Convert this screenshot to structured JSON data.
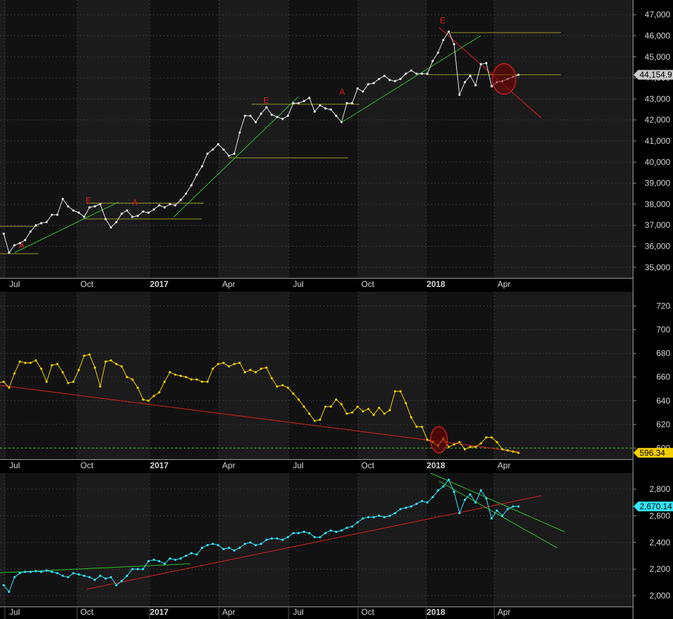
{
  "colors": {
    "background": "#1b1b1b",
    "band_dark": "#121212",
    "axis_text": "#d8d8d8",
    "grid": "#3a3a3a",
    "panel_divider": "#9a9a9a",
    "price_line": "#e6e6e6",
    "yellow_line": "#f5d000",
    "cyan_line": "#33e6ff",
    "trend_red": "#e02020",
    "trend_green": "#2ec02e",
    "level_olive": "#9a9a2a",
    "marker_red": "#e02020"
  },
  "x_axis_labels": [
    {
      "text": "Jul",
      "date": "2016-07-01",
      "bold": false
    },
    {
      "text": "Oct",
      "date": "2016-10-01",
      "bold": false
    },
    {
      "text": "2017",
      "date": "2017-01-01",
      "bold": true
    },
    {
      "text": "Apr",
      "date": "2017-04-01",
      "bold": false
    },
    {
      "text": "Jul",
      "date": "2017-07-01",
      "bold": false
    },
    {
      "text": "Oct",
      "date": "2017-10-01",
      "bold": false
    },
    {
      "text": "2018",
      "date": "2018-01-01",
      "bold": true
    },
    {
      "text": "Apr",
      "date": "2018-04-01",
      "bold": false
    }
  ],
  "chart_data": [
    {
      "type": "line",
      "panel": "top",
      "yticks": [
        "35,000",
        "36,000",
        "37,000",
        "38,000",
        "39,000",
        "40,000",
        "41,000",
        "42,000",
        "43,000",
        "44,000",
        "45,000",
        "46,000",
        "47,000"
      ],
      "ylim": [
        34500,
        47700
      ],
      "last_value_label": "44,154.9",
      "series": [
        {
          "values": [
            36600,
            35700,
            36050,
            36150,
            36300,
            36700,
            37000,
            37100,
            37150,
            37500,
            37500,
            38250,
            37900,
            37700,
            37600,
            37400,
            37850,
            37900,
            38000,
            37300,
            36900,
            37150,
            37550,
            37700,
            37400,
            37450,
            37650,
            37600,
            37750,
            37950,
            37850,
            38000,
            37950,
            38200,
            38500,
            38900,
            39400,
            39800,
            40400,
            40600,
            40850,
            40600,
            40300,
            40400,
            41400,
            42200,
            42200,
            41900,
            42300,
            42600,
            42250,
            42150,
            42050,
            42200,
            42800,
            42800,
            42900,
            43050,
            42400,
            42700,
            42550,
            42500,
            42200,
            41900,
            42800,
            42800,
            43500,
            43350,
            43700,
            43750,
            43950,
            44100,
            43900,
            43850,
            43950,
            44200,
            44350,
            44200,
            44200,
            44200,
            44800,
            45200,
            45800,
            46200,
            45600,
            43200,
            43800,
            44100,
            43650,
            44650,
            44700,
            43600,
            43800,
            43850,
            43950,
            44050,
            44150
          ]
        }
      ],
      "annotations": [
        {
          "text": "A",
          "date": "2016-07-10",
          "value": 35900
        },
        {
          "text": "E",
          "date": "2016-10-03",
          "value": 38050
        },
        {
          "text": "A",
          "date": "2016-12-01",
          "value": 37950
        },
        {
          "text": "E",
          "date": "2017-05-20",
          "value": 42800
        },
        {
          "text": "A",
          "date": "2017-08-28",
          "value": 43200
        },
        {
          "text": "E",
          "date": "2018-01-10",
          "value": 46600
        }
      ],
      "levels": [
        {
          "value": 36950,
          "from": "2016-06-01",
          "to": "2016-07-31",
          "color": "level_olive"
        },
        {
          "value": 35650,
          "from": "2016-06-01",
          "to": "2016-07-31",
          "color": "level_olive"
        },
        {
          "value": 38050,
          "from": "2016-10-01",
          "to": "2017-02-28",
          "color": "level_olive"
        },
        {
          "value": 37300,
          "from": "2016-09-25",
          "to": "2017-02-25",
          "color": "level_olive"
        },
        {
          "value": 42750,
          "from": "2017-05-01",
          "to": "2017-09-20",
          "color": "level_olive"
        },
        {
          "value": 40200,
          "from": "2017-04-01",
          "to": "2017-09-05",
          "color": "level_olive"
        },
        {
          "value": 46150,
          "from": "2018-01-20",
          "to": "2018-06-15",
          "color": "level_olive"
        },
        {
          "value": 44150,
          "from": "2017-12-20",
          "to": "2018-06-15",
          "color": "level_olive"
        }
      ],
      "trendlines": [
        {
          "from": [
            "2016-07-01",
            35700
          ],
          "to": [
            "2016-11-10",
            38100
          ],
          "color": "trend_green"
        },
        {
          "from": [
            "2017-01-20",
            37400
          ],
          "to": [
            "2017-07-01",
            43100
          ],
          "color": "trend_green"
        },
        {
          "from": [
            "2017-08-28",
            41900
          ],
          "to": [
            "2018-03-01",
            46000
          ],
          "color": "trend_green"
        },
        {
          "from": [
            "2018-01-05",
            46400
          ],
          "to": [
            "2018-05-20",
            42100
          ],
          "color": "trend_red"
        }
      ],
      "ellipses": [
        {
          "date": "2018-04-01",
          "value": 43950
        }
      ]
    },
    {
      "type": "line",
      "panel": "middle",
      "yticks": [
        "600",
        "620",
        "640",
        "660",
        "680",
        "700",
        "720"
      ],
      "ylim": [
        590,
        732
      ],
      "last_value_label": "596.34",
      "reference_level": 600,
      "series": [
        {
          "values": [
            684,
            679,
            660,
            659,
            656,
            650,
            655,
            656,
            651,
            663,
            673,
            672,
            672,
            674,
            667,
            656,
            670,
            671,
            664,
            655,
            656,
            666,
            678,
            679,
            668,
            652,
            673,
            674,
            671,
            669,
            660,
            658,
            651,
            641,
            640,
            644,
            647,
            656,
            664,
            662,
            661,
            660,
            658,
            658,
            656,
            656,
            667,
            671,
            672,
            669,
            671,
            672,
            664,
            666,
            664,
            667,
            668,
            659,
            652,
            653,
            651,
            646,
            641,
            635,
            629,
            623,
            624,
            635,
            635,
            641,
            637,
            629,
            630,
            635,
            631,
            633,
            628,
            634,
            629,
            632,
            648,
            648,
            638,
            626,
            618,
            618,
            607,
            605,
            602,
            608,
            601,
            603,
            605,
            599,
            601,
            601,
            604,
            609,
            609,
            605,
            599,
            598,
            597,
            596
          ]
        }
      ],
      "trendlines": [
        {
          "from": [
            "2016-06-01",
            654
          ],
          "to": [
            "2018-04-20",
            597
          ],
          "color": "trend_red"
        }
      ],
      "ellipses": [
        {
          "date": "2018-01-05",
          "value": 607
        }
      ]
    },
    {
      "type": "line",
      "panel": "bottom",
      "yticks": [
        "2,000",
        "2,200",
        "2,400",
        "2,600",
        "2,800"
      ],
      "ylim": [
        1920,
        2920
      ],
      "last_value_label": "2,670.14",
      "series": [
        {
          "values": [
            2080,
            2030,
            2140,
            2170,
            2180,
            2180,
            2185,
            2180,
            2190,
            2180,
            2170,
            2150,
            2140,
            2170,
            2160,
            2150,
            2140,
            2120,
            2150,
            2130,
            2140,
            2080,
            2110,
            2150,
            2200,
            2200,
            2200,
            2260,
            2270,
            2260,
            2240,
            2280,
            2270,
            2280,
            2300,
            2320,
            2310,
            2360,
            2380,
            2390,
            2380,
            2350,
            2360,
            2340,
            2360,
            2390,
            2400,
            2380,
            2390,
            2420,
            2430,
            2430,
            2420,
            2440,
            2470,
            2470,
            2480,
            2470,
            2440,
            2440,
            2470,
            2490,
            2480,
            2490,
            2510,
            2520,
            2550,
            2580,
            2590,
            2590,
            2600,
            2590,
            2600,
            2620,
            2650,
            2660,
            2670,
            2690,
            2710,
            2700,
            2740,
            2790,
            2820,
            2870,
            2780,
            2620,
            2720,
            2760,
            2700,
            2790,
            2730,
            2580,
            2640,
            2600,
            2650,
            2670,
            2670
          ]
        }
      ],
      "trendlines": [
        {
          "from": [
            "2016-06-01",
            2170
          ],
          "to": [
            "2017-02-10",
            2240
          ],
          "color": "trend_green"
        },
        {
          "from": [
            "2016-10-01",
            2050
          ],
          "to": [
            "2018-05-20",
            2750
          ],
          "color": "trend_red"
        },
        {
          "from": [
            "2017-12-25",
            2920
          ],
          "to": [
            "2018-06-20",
            2480
          ],
          "color": "trend_green"
        },
        {
          "from": [
            "2018-01-05",
            2860
          ],
          "to": [
            "2018-06-10",
            2360
          ],
          "color": "trend_green"
        }
      ]
    }
  ]
}
